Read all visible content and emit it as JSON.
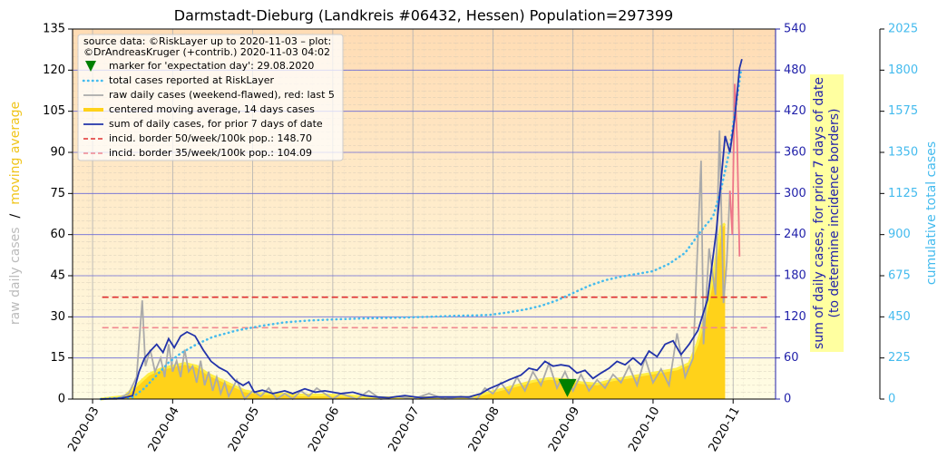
{
  "chart_data": {
    "type": "line",
    "title": "Darmstadt-Dieburg (Landkreis #06432, Hessen) Population=297399",
    "legend_title": [
      "source data: ©RiskLayer up to 2020-11-03 – plot:",
      "©DrAndreasKruger (+contrib.) 2020-11-03 04:02"
    ],
    "y_label_parts": [
      {
        "text": "raw daily cases",
        "color": "#bbbbbb"
      },
      {
        "text": "/",
        "color": "#000000"
      },
      {
        "text": "moving average",
        "color": "#f0c419"
      }
    ],
    "y2_label": [
      "sum of daily cases, for prior 7 days of date",
      "(to determine incidence borders)"
    ],
    "y3_label": "cumulative total cases",
    "grid": true,
    "xlim": [
      2.75,
      11.53
    ],
    "xticks": [
      {
        "value": 3,
        "label": "2020-03"
      },
      {
        "value": 4,
        "label": "2020-04"
      },
      {
        "value": 5,
        "label": "2020-05"
      },
      {
        "value": 6,
        "label": "2020-06"
      },
      {
        "value": 7,
        "label": "2020-07"
      },
      {
        "value": 8,
        "label": "2020-08"
      },
      {
        "value": 9,
        "label": "2020-09"
      },
      {
        "value": 10,
        "label": "2020-10"
      },
      {
        "value": 11,
        "label": "2020-11"
      }
    ],
    "ylim": [
      0,
      135
    ],
    "yticks": [
      0,
      15,
      30,
      45,
      60,
      75,
      90,
      105,
      120,
      135
    ],
    "y2lim": [
      0,
      540
    ],
    "y2ticks": [
      0,
      60,
      120,
      180,
      240,
      300,
      360,
      420,
      480,
      540
    ],
    "y3lim": [
      0,
      2025
    ],
    "y3ticks": [
      0,
      225,
      450,
      675,
      900,
      1125,
      1350,
      1575,
      1800,
      2025
    ],
    "marker": {
      "name": "marker for 'expectation day': 29.08.2020",
      "x": 8.93,
      "y": 4,
      "color": "#008000"
    },
    "series": [
      {
        "name": "total cases reported at RiskLayer",
        "color": "#44bbee",
        "axis": "y3",
        "style": "dotted",
        "x": [
          3.1,
          3.5,
          3.65,
          3.8,
          3.95,
          4.1,
          4.3,
          4.5,
          4.8,
          5.1,
          5.4,
          5.7,
          6.0,
          6.3,
          6.6,
          6.9,
          7.2,
          7.5,
          7.8,
          7.95,
          8.2,
          8.4,
          8.6,
          8.8,
          9.0,
          9.2,
          9.4,
          9.6,
          9.8,
          10.0,
          10.2,
          10.4,
          10.6,
          10.75,
          10.85,
          10.95,
          11.05,
          11.1
        ],
        "values": [
          0,
          10,
          60,
          130,
          200,
          250,
          300,
          340,
          375,
          400,
          420,
          430,
          436,
          440,
          443,
          446,
          450,
          455,
          458,
          460,
          475,
          490,
          510,
          540,
          580,
          620,
          650,
          670,
          685,
          700,
          740,
          800,
          920,
          1000,
          1150,
          1350,
          1650,
          1800
        ]
      },
      {
        "name": "raw daily cases (weekend-flawed), red: last 5",
        "color": "#aaaaaa",
        "axis": "y",
        "style": "solid",
        "highlight_last": 5,
        "highlight_color": "#ee7788",
        "x": [
          3.1,
          3.3,
          3.45,
          3.55,
          3.62,
          3.66,
          3.72,
          3.78,
          3.85,
          3.9,
          3.95,
          4.0,
          4.05,
          4.1,
          4.15,
          4.2,
          4.25,
          4.3,
          4.35,
          4.4,
          4.45,
          4.5,
          4.55,
          4.6,
          4.65,
          4.7,
          4.8,
          4.9,
          5.0,
          5.1,
          5.2,
          5.3,
          5.4,
          5.5,
          5.6,
          5.7,
          5.8,
          6.0,
          6.1,
          6.3,
          6.45,
          6.6,
          6.8,
          7.0,
          7.2,
          7.4,
          7.6,
          7.8,
          7.9,
          8.0,
          8.1,
          8.2,
          8.3,
          8.4,
          8.5,
          8.6,
          8.7,
          8.8,
          8.9,
          9.0,
          9.1,
          9.2,
          9.3,
          9.4,
          9.5,
          9.6,
          9.7,
          9.8,
          9.9,
          10.0,
          10.1,
          10.2,
          10.3,
          10.4,
          10.5,
          10.6,
          10.63,
          10.7,
          10.78,
          10.83,
          10.88,
          10.92,
          10.96,
          10.99,
          11.02,
          11.05,
          11.08
        ],
        "values": [
          0,
          0,
          2,
          8,
          36,
          12,
          18,
          10,
          15,
          8,
          20,
          10,
          14,
          8,
          18,
          10,
          12,
          6,
          14,
          5,
          10,
          3,
          8,
          2,
          6,
          1,
          7,
          0,
          3,
          1,
          4,
          0,
          2,
          0,
          3,
          1,
          4,
          0,
          2,
          0,
          3,
          0,
          1,
          0,
          2,
          0,
          1,
          0,
          4,
          2,
          6,
          2,
          8,
          3,
          10,
          5,
          13,
          4,
          10,
          3,
          9,
          3,
          7,
          4,
          9,
          6,
          12,
          5,
          15,
          6,
          11,
          5,
          24,
          8,
          15,
          87,
          20,
          55,
          38,
          98,
          35,
          50,
          76,
          60,
          115,
          95,
          52
        ]
      },
      {
        "name": "centered moving average, 14 days cases",
        "color": "#ffd21a",
        "line_color": "#ffee44",
        "axis": "y",
        "style": "area",
        "x": [
          3.1,
          3.4,
          3.55,
          3.7,
          3.85,
          4.0,
          4.15,
          4.3,
          4.45,
          4.6,
          4.75,
          4.9,
          5.1,
          5.3,
          5.6,
          5.9,
          6.2,
          6.5,
          6.8,
          7.1,
          7.4,
          7.7,
          7.9,
          8.1,
          8.3,
          8.5,
          8.7,
          8.9,
          9.1,
          9.3,
          9.5,
          9.7,
          9.9,
          10.1,
          10.3,
          10.45,
          10.55,
          10.65,
          10.75,
          10.85,
          10.9
        ],
        "values": [
          0,
          1,
          5,
          9,
          11,
          12,
          13,
          12,
          9,
          7,
          5,
          3,
          2,
          2,
          1.5,
          1.5,
          1.2,
          0.5,
          0.5,
          0.5,
          0.5,
          0.6,
          2,
          3.5,
          5,
          6.5,
          7.5,
          7,
          6,
          5.5,
          7,
          8,
          9,
          10,
          11,
          13,
          20,
          30,
          45,
          63,
          64
        ]
      },
      {
        "name": "sum of daily cases, for prior 7 days of date",
        "color": "#2233aa",
        "axis": "y2",
        "style": "solid",
        "x": [
          3.1,
          3.35,
          3.5,
          3.58,
          3.65,
          3.72,
          3.8,
          3.88,
          3.95,
          4.02,
          4.1,
          4.18,
          4.28,
          4.38,
          4.48,
          4.58,
          4.68,
          4.78,
          4.88,
          4.95,
          5.02,
          5.12,
          5.25,
          5.4,
          5.5,
          5.65,
          5.78,
          5.9,
          6.1,
          6.25,
          6.4,
          6.55,
          6.7,
          6.9,
          7.1,
          7.3,
          7.5,
          7.7,
          7.85,
          7.95,
          8.05,
          8.2,
          8.35,
          8.45,
          8.55,
          8.65,
          8.75,
          8.85,
          8.95,
          9.05,
          9.15,
          9.25,
          9.35,
          9.45,
          9.55,
          9.65,
          9.75,
          9.85,
          9.95,
          10.05,
          10.15,
          10.25,
          10.35,
          10.45,
          10.56,
          10.68,
          10.79,
          10.9,
          10.96,
          11.02,
          11.08,
          11.11
        ],
        "values": [
          0,
          1,
          5,
          40,
          60,
          70,
          80,
          68,
          88,
          75,
          92,
          98,
          92,
          72,
          55,
          46,
          40,
          27,
          20,
          25,
          10,
          13,
          8,
          12,
          8,
          15,
          10,
          12,
          8,
          10,
          5,
          3,
          2,
          5,
          2,
          3,
          3,
          3,
          8,
          15,
          20,
          28,
          35,
          45,
          42,
          55,
          48,
          50,
          48,
          38,
          42,
          30,
          38,
          45,
          55,
          50,
          60,
          50,
          70,
          62,
          80,
          85,
          65,
          80,
          100,
          145,
          245,
          384,
          360,
          410,
          483,
          496
        ]
      }
    ],
    "hlines": [
      {
        "name": "incid. border 50/week/100k pop.: 148.70",
        "value": 148.7,
        "axis": "y2",
        "color": "#e03030",
        "x": [
          3.12,
          11.45
        ]
      },
      {
        "name": "incid. border 35/week/100k pop.: 104.09",
        "value": 104.09,
        "axis": "y2",
        "color": "#f08890",
        "x": [
          3.12,
          11.45
        ]
      }
    ]
  }
}
